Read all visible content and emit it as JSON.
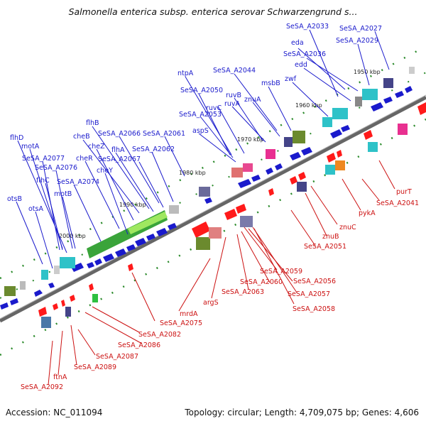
{
  "title": "Salmonella enterica subsp. enterica serovar Schwarzengrund s...",
  "footer": {
    "accession": "Accession: NC_011094",
    "summary": "Topology: circular; Length: 4,709,075 bp; Genes: 4,606"
  },
  "scale_marks": [
    {
      "label": "1950 kbp",
      "kbp": 1950
    },
    {
      "label": "1960 kbp",
      "kbp": 1960
    },
    {
      "label": "1970 kbp",
      "kbp": 1970
    },
    {
      "label": "1980 kbp",
      "kbp": 1980
    },
    {
      "label": "1990 kbp",
      "kbp": 1990
    },
    {
      "label": "2000 kbp",
      "kbp": 2000
    }
  ],
  "genes_top": [
    "SeSA_A2033",
    "SeSA_A2027",
    "eda",
    "SeSA_A2029",
    "SeSA_A2036",
    "edd",
    "SeSA_A2044",
    "ntpA",
    "zwf",
    "msbB",
    "SeSA_A2050",
    "ruvB",
    "ruvC",
    "ruvA",
    "znuA",
    "SeSA_A2053",
    "aspS",
    "flhB",
    "cheB",
    "SeSA_A2066",
    "SeSA_A2061",
    "cheZ",
    "flhA",
    "flhD",
    "cheR",
    "SeSA_A2067",
    "SeSA_A2062",
    "motA",
    "cheY",
    "SeSA_A2077",
    "SeSA_A2076",
    "flhC",
    "SeSA_A2074",
    "motB",
    "otsB",
    "otsA"
  ],
  "genes_bottom": [
    "purT",
    "SeSA_A2041",
    "pykA",
    "znuC",
    "znuB",
    "SeSA_A2051",
    "SeSA_A2059",
    "SeSA_A2060",
    "SeSA_A2056",
    "SeSA_A2063",
    "SeSA_A2057",
    "SeSA_A2058",
    "argS",
    "mrdA",
    "SeSA_A2075",
    "SeSA_A2082",
    "SeSA_A2086",
    "SeSA_A2087",
    "SeSA_A2089",
    "ftnA",
    "SeSA_A2092"
  ],
  "colors": {
    "forward": "#1a1acc",
    "reverse": "#cc1111",
    "backbone": "#7a7a7a"
  }
}
